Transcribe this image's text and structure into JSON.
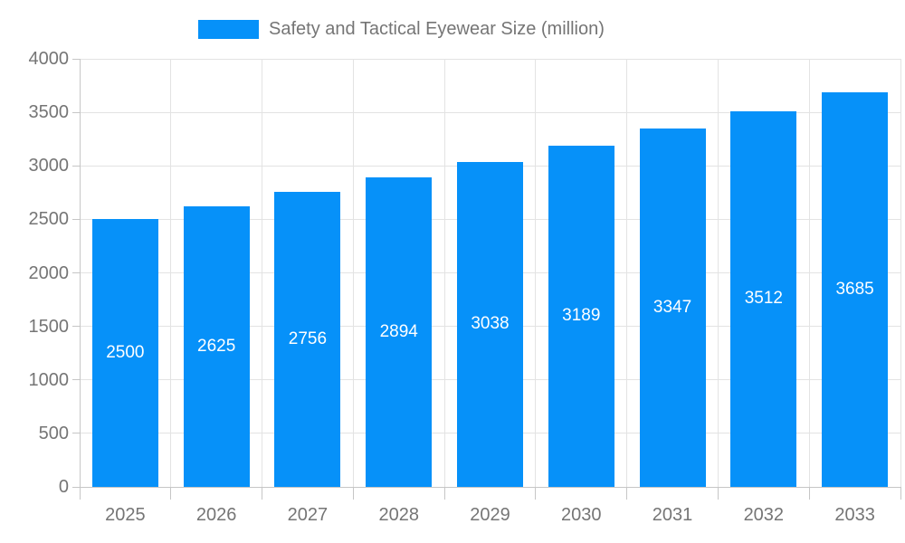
{
  "legend": {
    "label": "Safety and Tactical Eyewear Size (million)"
  },
  "colors": {
    "bar": "#0691f9",
    "grid": "#e3e3e3",
    "axis": "#c6c6c6",
    "text": "#757575",
    "bar_label": "#ffffff",
    "background": "#ffffff"
  },
  "chart_data": {
    "type": "bar",
    "title": "Safety and Tactical Eyewear Size (million)",
    "series_name": "Safety and Tactical Eyewear Size (million)",
    "categories": [
      "2025",
      "2026",
      "2027",
      "2028",
      "2029",
      "2030",
      "2031",
      "2032",
      "2033"
    ],
    "values": [
      2500,
      2625,
      2756,
      2894,
      3038,
      3189,
      3347,
      3512,
      3685
    ],
    "xlabel": "",
    "ylabel": "",
    "ylim": [
      0,
      4000
    ],
    "yticks": [
      0,
      500,
      1000,
      1500,
      2000,
      2500,
      3000,
      3500,
      4000
    ],
    "grid": true,
    "legend_position": "top-center",
    "bar_labels_position": "inside-center"
  }
}
